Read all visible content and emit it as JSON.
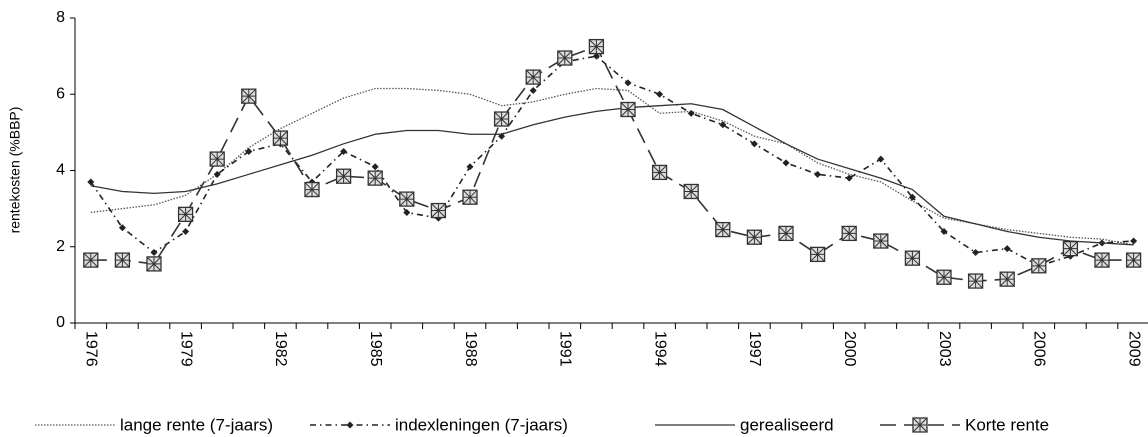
{
  "chart_data": {
    "type": "line",
    "y_label": "rentekosten (%BBP)",
    "categories": [
      "1976",
      null,
      null,
      "1979",
      null,
      null,
      "1982",
      null,
      null,
      "1985",
      null,
      null,
      "1988",
      null,
      null,
      "1991",
      null,
      null,
      "1994",
      null,
      null,
      "1997",
      null,
      null,
      "2000",
      null,
      null,
      "2003",
      null,
      null,
      "2006",
      null,
      null,
      "2009"
    ],
    "ylim": [
      0,
      8
    ],
    "yticks": [
      0,
      2,
      4,
      6,
      8
    ],
    "grid": false,
    "legend": "bottom",
    "series": [
      {
        "name": "lange rente (7-jaars)",
        "color": "#555555",
        "style": "dotted",
        "marker": "none",
        "values": [
          2.9,
          3.0,
          3.1,
          3.35,
          3.9,
          4.6,
          5.1,
          5.5,
          5.9,
          6.15,
          6.15,
          6.1,
          6.0,
          5.7,
          5.8,
          6.0,
          6.15,
          6.1,
          5.5,
          5.55,
          5.3,
          4.9,
          4.7,
          4.2,
          3.9,
          3.7,
          3.2,
          2.75,
          2.6,
          2.45,
          2.35,
          2.25,
          2.2,
          2.05
        ]
      },
      {
        "name": "indexleningen (7-jaars)",
        "color": "#222222",
        "style": "dashdot",
        "marker": "diamond",
        "values": [
          3.7,
          2.5,
          1.85,
          2.4,
          3.9,
          4.5,
          4.7,
          3.7,
          4.5,
          4.1,
          2.9,
          2.75,
          4.1,
          4.9,
          6.1,
          6.85,
          7.0,
          6.3,
          6.0,
          5.5,
          5.2,
          4.7,
          4.2,
          3.9,
          3.8,
          4.3,
          3.3,
          2.4,
          1.85,
          1.95,
          1.5,
          1.75,
          2.1,
          2.15
        ]
      },
      {
        "name": "gerealiseerd",
        "color": "#333333",
        "style": "solid",
        "marker": "none",
        "values": [
          3.6,
          3.45,
          3.4,
          3.45,
          3.65,
          3.9,
          4.15,
          4.4,
          4.7,
          4.95,
          5.05,
          5.05,
          4.95,
          4.95,
          5.2,
          5.4,
          5.55,
          5.65,
          5.7,
          5.75,
          5.6,
          5.15,
          4.7,
          4.3,
          4.05,
          3.8,
          3.5,
          2.8,
          2.6,
          2.4,
          2.25,
          2.15,
          2.1,
          2.05
        ]
      },
      {
        "name": "Korte rente",
        "color": "#333333",
        "style": "dashed",
        "marker": "boxx",
        "values": [
          1.65,
          1.65,
          1.55,
          2.85,
          4.3,
          5.95,
          4.85,
          3.5,
          3.85,
          3.8,
          3.25,
          2.95,
          3.3,
          5.35,
          6.45,
          6.95,
          7.25,
          5.6,
          3.95,
          3.45,
          2.45,
          2.25,
          2.35,
          1.8,
          2.35,
          2.15,
          1.7,
          1.2,
          1.1,
          1.15,
          1.5,
          1.95,
          1.65,
          1.65
        ]
      }
    ]
  }
}
